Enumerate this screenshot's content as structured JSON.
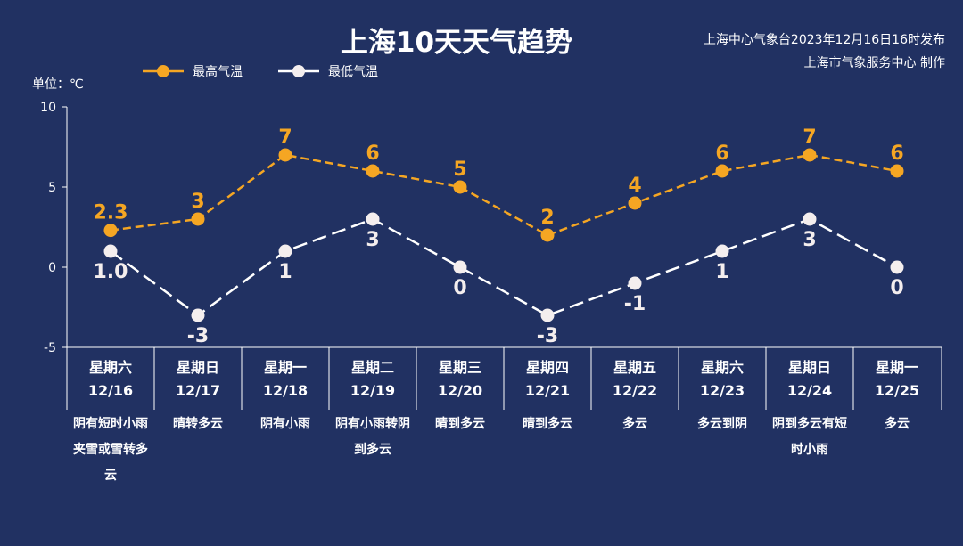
{
  "title": "上海10天天气趋势",
  "source_line1": "上海中心气象台2023年12月16日16时发布",
  "source_line2": "上海市气象服务中心 制作",
  "unit_label": "单位：℃",
  "colors": {
    "background": "#213162",
    "high": "#f5a623",
    "low": "#ffffff"
  },
  "days": [
    {
      "weekday": "星期六",
      "date": "12/16",
      "weather": "阴有短时小雨夹雪或雪转多云"
    },
    {
      "weekday": "星期日",
      "date": "12/17",
      "weather": "晴转多云"
    },
    {
      "weekday": "星期一",
      "date": "12/18",
      "weather": "阴有小雨"
    },
    {
      "weekday": "星期二",
      "date": "12/19",
      "weather": "阴有小雨转阴到多云"
    },
    {
      "weekday": "星期三",
      "date": "12/20",
      "weather": "晴到多云"
    },
    {
      "weekday": "星期四",
      "date": "12/21",
      "weather": "晴到多云"
    },
    {
      "weekday": "星期五",
      "date": "12/22",
      "weather": "多云"
    },
    {
      "weekday": "星期六",
      "date": "12/23",
      "weather": "多云到阴"
    },
    {
      "weekday": "星期日",
      "date": "12/24",
      "weather": "阴到多云有短时小雨"
    },
    {
      "weekday": "星期一",
      "date": "12/25",
      "weather": "多云"
    }
  ],
  "chart_data": {
    "type": "line",
    "x": [
      "12/16",
      "12/17",
      "12/18",
      "12/19",
      "12/20",
      "12/21",
      "12/22",
      "12/23",
      "12/24",
      "12/25"
    ],
    "series": [
      {
        "name": "最高气温",
        "values": [
          2.3,
          3,
          7,
          6,
          5,
          2,
          4,
          6,
          7,
          6
        ],
        "labels": [
          "2.3",
          "3",
          "7",
          "6",
          "5",
          "2",
          "4",
          "6",
          "7",
          "6"
        ]
      },
      {
        "name": "最低气温",
        "values": [
          1.0,
          -3,
          1,
          3,
          0,
          -3,
          -1,
          1,
          3,
          0
        ],
        "labels": [
          "1.0",
          "-3",
          "1",
          "3",
          "0",
          "-3",
          "-1",
          "1",
          "3",
          "0"
        ]
      }
    ],
    "ylim": [
      -5,
      10
    ],
    "yticks": [
      "10",
      "5",
      "0",
      "-5"
    ],
    "grid": false,
    "legend": "top-left",
    "ylabel": "单位：℃"
  }
}
